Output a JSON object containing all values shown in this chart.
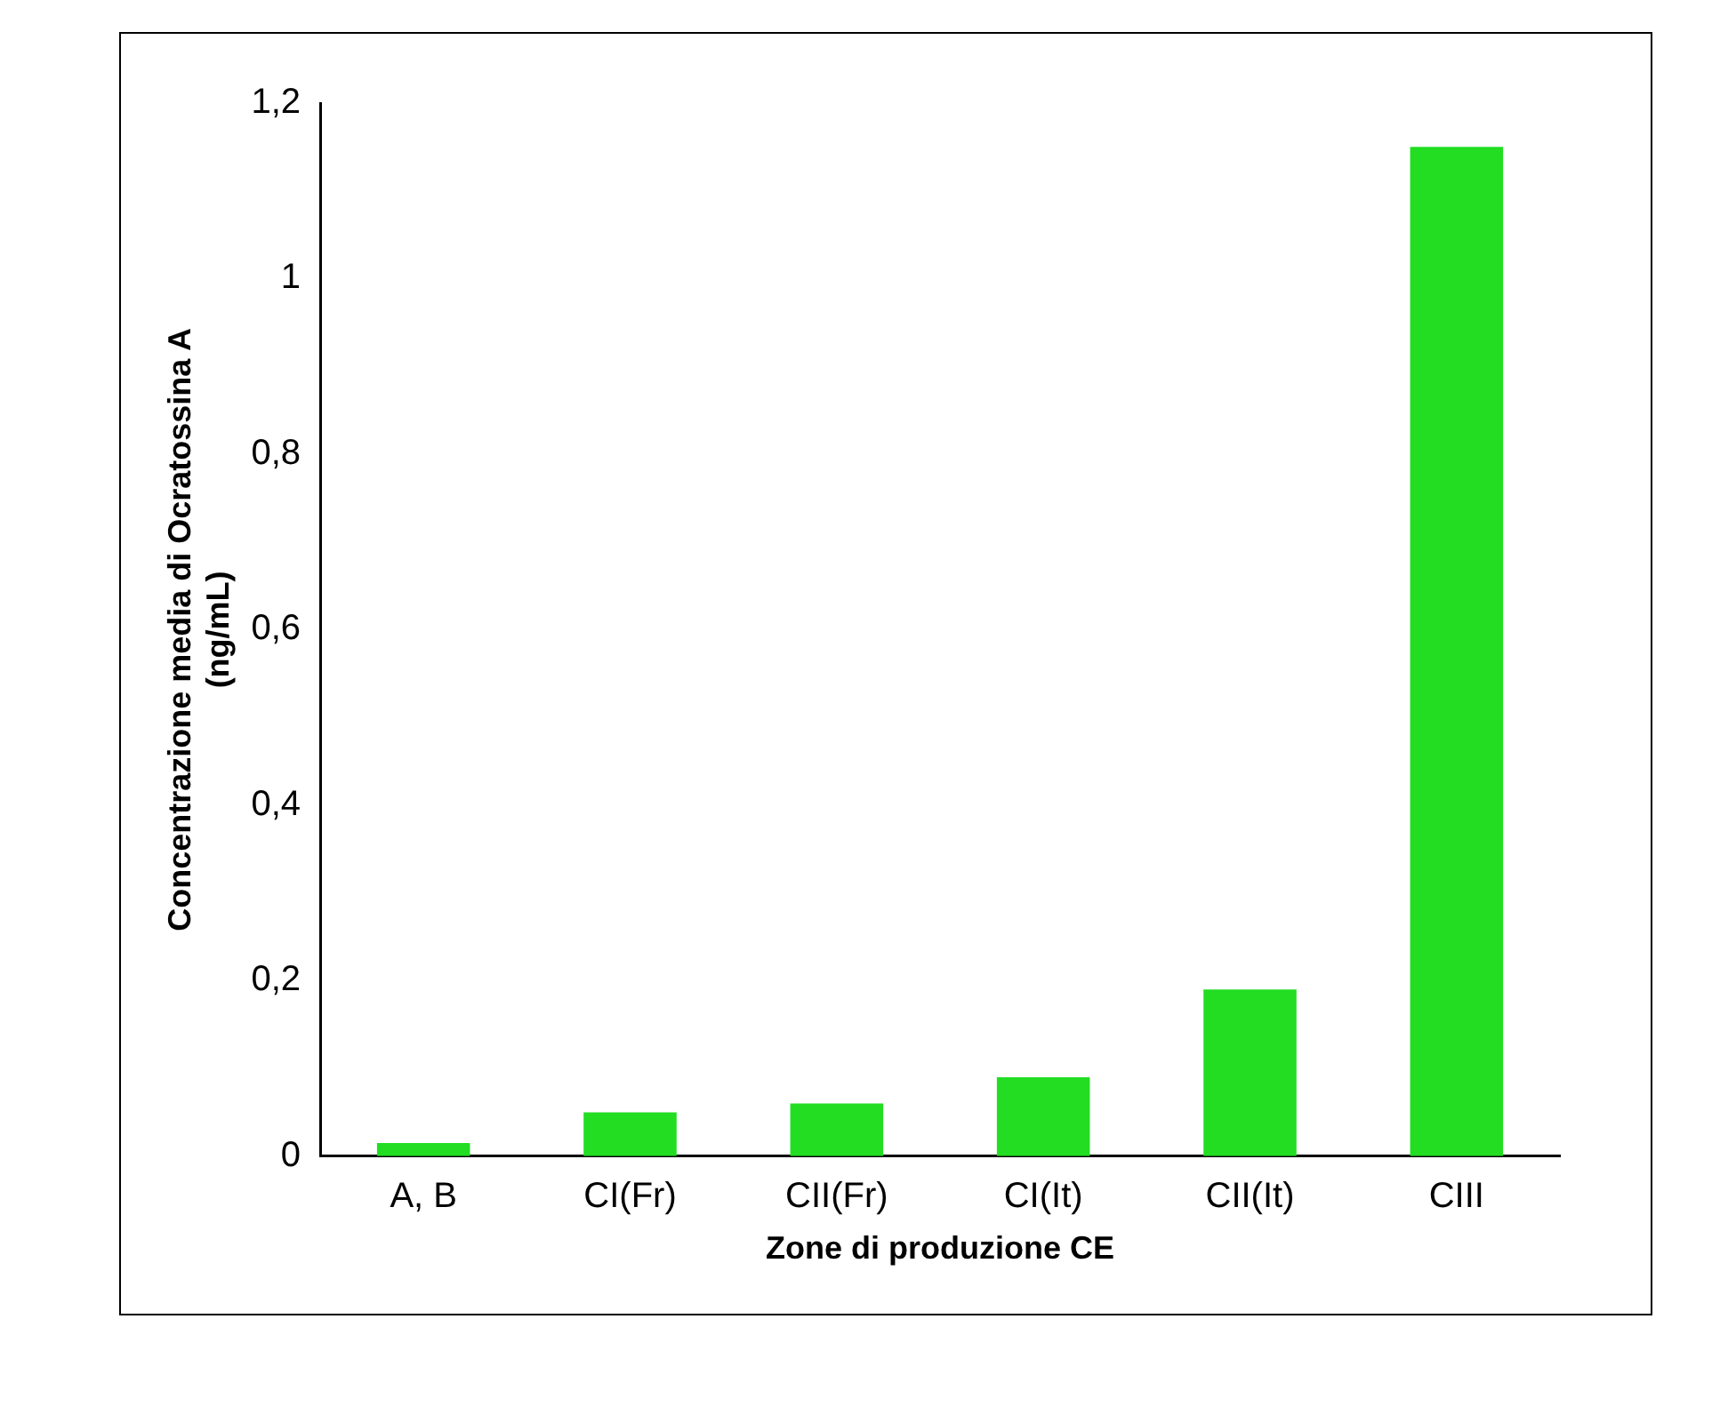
{
  "chart_data": {
    "type": "bar",
    "xlabel": "Zone di produzione CE",
    "ylabel": "Concentrazione media di Ocratossina A\n(ng/mL)",
    "categories": [
      "A, B",
      "CI(Fr)",
      "CII(Fr)",
      "CI(It)",
      "CII(It)",
      "CIII"
    ],
    "values": [
      0.015,
      0.05,
      0.06,
      0.09,
      0.19,
      1.15
    ],
    "color": "#22dd22",
    "ylim": [
      0,
      1.2
    ],
    "yticks": [
      0,
      {
        "value": 0.2,
        "label": "0,2"
      },
      {
        "value": 0.4,
        "label": "0,4"
      },
      {
        "value": 0.6,
        "label": "0,6"
      },
      {
        "value": 0.8,
        "label": "0,8"
      },
      1,
      {
        "value": 1.2,
        "label": "1,2"
      }
    ],
    "grid": false
  }
}
